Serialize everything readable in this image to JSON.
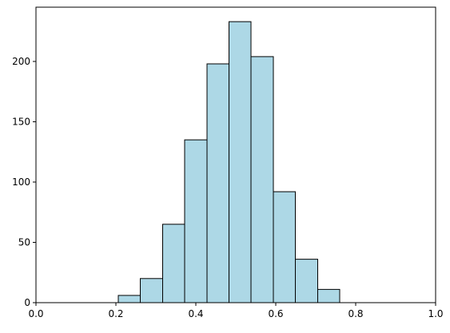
{
  "chart_data": {
    "type": "histogram",
    "bins": [
      0.206,
      0.261,
      0.317,
      0.372,
      0.428,
      0.483,
      0.538,
      0.594,
      0.649,
      0.705,
      0.76
    ],
    "values": [
      6,
      20,
      65,
      135,
      198,
      233,
      204,
      92,
      36,
      11
    ],
    "color": "#add8e6",
    "edgecolor": "#000000",
    "xlim": [
      0,
      1
    ],
    "xticks": [
      {
        "value": 0,
        "label": "0.0"
      },
      {
        "value": 0.2,
        "label": "0.2"
      },
      {
        "value": 0.4,
        "label": "0.4"
      },
      {
        "value": 0.6,
        "label": "0.6"
      },
      {
        "value": 0.8,
        "label": "0.8"
      },
      {
        "value": 1,
        "label": "1.0"
      }
    ],
    "ylim": [
      0,
      245
    ],
    "yticks": [
      0,
      50,
      100,
      150,
      200
    ],
    "grid": false
  }
}
